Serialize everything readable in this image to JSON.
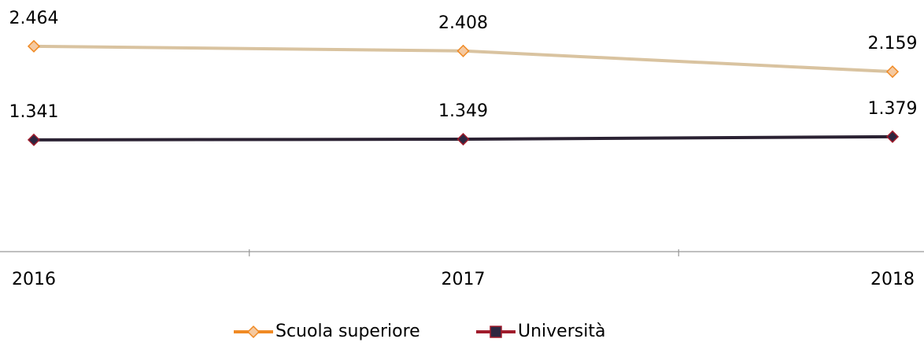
{
  "chart_data": {
    "type": "line",
    "categories": [
      "2016",
      "2017",
      "2018"
    ],
    "series": [
      {
        "name": "Scuola superiore",
        "color": "#d9c3a0",
        "marker_fill": "#f5c9a0",
        "marker_stroke": "#f08a24",
        "values": [
          2464,
          2408,
          2159
        ],
        "value_labels": [
          "2.464",
          "2.408",
          "2.159"
        ]
      },
      {
        "name": "Università",
        "color": "#2b2233",
        "marker_fill": "#2d2640",
        "marker_stroke": "#a01c2c",
        "values": [
          1341,
          1349,
          1379
        ],
        "value_labels": [
          "1.341",
          "1.349",
          "1.379"
        ]
      }
    ],
    "ylim": [
      0,
      3000
    ],
    "legend": "bottom"
  }
}
